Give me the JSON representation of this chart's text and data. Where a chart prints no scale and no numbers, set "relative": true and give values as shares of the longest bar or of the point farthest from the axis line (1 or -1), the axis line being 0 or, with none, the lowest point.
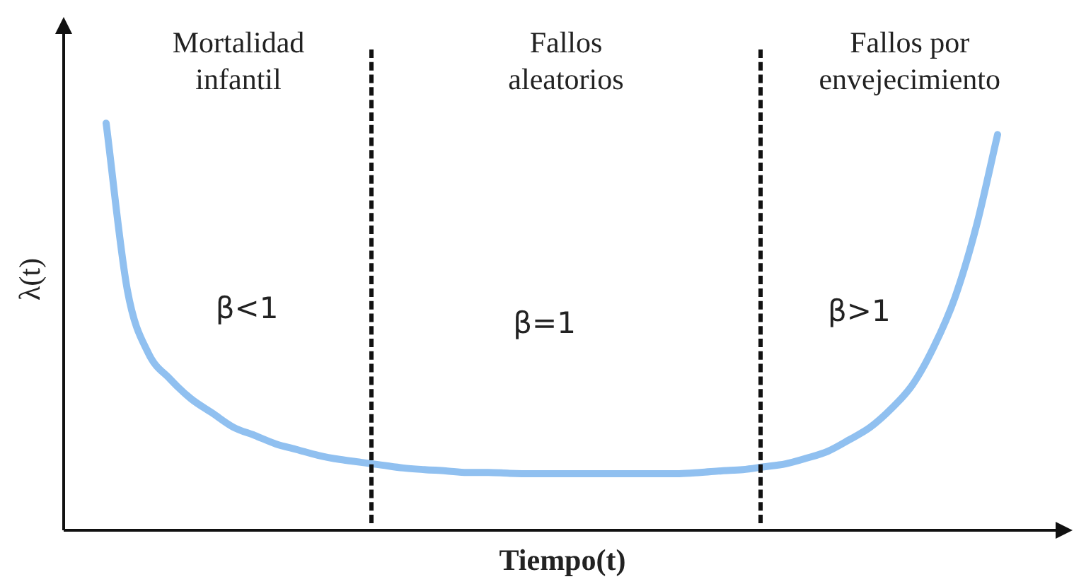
{
  "chart_data": {
    "type": "line",
    "relative": true,
    "xlabel": "Tiempo(t)",
    "ylabel": "λ(t)",
    "marker": "none",
    "line_style": "solid",
    "categories": [
      null,
      null,
      null,
      null,
      null,
      null,
      null,
      null,
      null,
      null,
      null,
      null,
      null,
      null,
      null,
      null,
      null,
      null,
      null,
      null,
      null,
      null,
      null,
      null,
      null,
      null,
      null,
      null,
      null,
      null,
      null,
      null,
      null,
      null,
      null,
      null,
      null,
      null,
      null,
      null,
      null,
      null,
      null
    ],
    "series": [
      {
        "color": "#90c0f0",
        "values": [
          1.0,
          0.59,
          0.434,
          0.372,
          0.323,
          0.288,
          0.253,
          0.233,
          0.212,
          0.198,
          0.184,
          0.174,
          0.167,
          0.16,
          0.153,
          0.149,
          0.146,
          0.142,
          0.142,
          0.14,
          0.139,
          0.139,
          0.139,
          0.139,
          0.139,
          0.139,
          0.139,
          0.139,
          0.142,
          0.146,
          0.149,
          0.156,
          0.163,
          0.177,
          0.194,
          0.222,
          0.253,
          0.299,
          0.358,
          0.451,
          0.573,
          0.747,
          0.972
        ]
      }
    ],
    "annotations": [
      "Mortalidad\ninfantil",
      "Fallos\naleatorios",
      "Fallos por\nenvejecimiento",
      "β<1",
      "β=1",
      "β>1"
    ]
  }
}
